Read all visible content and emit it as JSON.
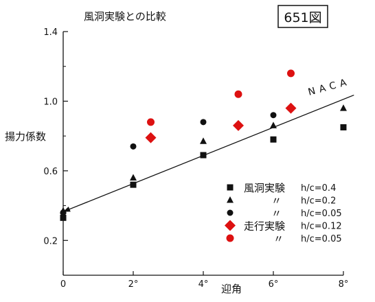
{
  "chart_data": {
    "type": "scatter",
    "title": "風洞実験との比較",
    "figure_label": "651図",
    "xlabel": "迎角",
    "ylabel": "揚力係数",
    "xlim": [
      0,
      8
    ],
    "ylim": [
      0,
      1.4
    ],
    "x_ticks": [
      {
        "value": 0,
        "label": "0"
      },
      {
        "value": 2,
        "label": "2°"
      },
      {
        "value": 4,
        "label": "4°"
      },
      {
        "value": 6,
        "label": "6°"
      },
      {
        "value": 8,
        "label": "8°"
      }
    ],
    "y_ticks": [
      {
        "value": 0.2,
        "label": "0.2"
      },
      {
        "value": 0.6,
        "label": "0.6"
      },
      {
        "value": 1.0,
        "label": "1.0"
      },
      {
        "value": 1.4,
        "label": "1.4"
      }
    ],
    "reference_line": {
      "label": "NACA",
      "points": [
        [
          0,
          0.365
        ],
        [
          8.3,
          1.035
        ]
      ]
    },
    "series": [
      {
        "legend_label": "風洞実験",
        "legend_value": "h/c=0.4",
        "marker": "square",
        "color": "#111111",
        "points": [
          [
            0,
            0.33
          ],
          [
            2,
            0.52
          ],
          [
            4,
            0.69
          ],
          [
            6,
            0.78
          ],
          [
            8,
            0.85
          ]
        ]
      },
      {
        "legend_label": "〃",
        "legend_value": "h/c=0.2",
        "marker": "triangle",
        "color": "#111111",
        "points": [
          [
            0,
            0.37
          ],
          [
            2,
            0.56
          ],
          [
            4,
            0.77
          ],
          [
            6,
            0.86
          ],
          [
            8,
            0.96
          ]
        ]
      },
      {
        "legend_label": "〃",
        "legend_value": "h/c=0.05",
        "marker": "circle",
        "color": "#111111",
        "points": [
          [
            0,
            0.36
          ],
          [
            2,
            0.74
          ],
          [
            4,
            0.88
          ],
          [
            6,
            0.92
          ]
        ]
      },
      {
        "legend_label": "走行実験",
        "legend_value": "h/c=0.12",
        "marker": "diamond",
        "color": "#dd1111",
        "points": [
          [
            2.5,
            0.79
          ],
          [
            5,
            0.86
          ],
          [
            6.5,
            0.96
          ]
        ]
      },
      {
        "legend_label": "〃",
        "legend_value": "h/c=0.05",
        "marker": "circle",
        "color": "#dd1111",
        "points": [
          [
            2.5,
            0.88
          ],
          [
            5,
            1.04
          ],
          [
            6.5,
            1.16
          ]
        ]
      }
    ]
  }
}
